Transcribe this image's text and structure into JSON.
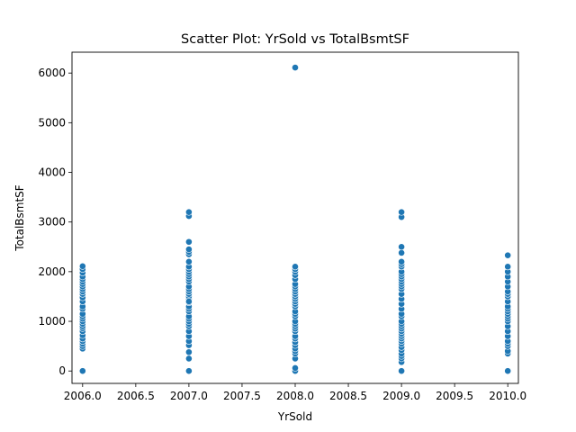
{
  "chart_data": {
    "type": "scatter",
    "title": "Scatter Plot: YrSold vs TotalBsmtSF",
    "xlabel": "YrSold",
    "ylabel": "TotalBsmtSF",
    "xlim": [
      2005.9,
      2010.1
    ],
    "ylim": [
      -250,
      6420
    ],
    "xticks": [
      "2006.0",
      "2006.5",
      "2007.0",
      "2007.5",
      "2008.0",
      "2008.5",
      "2009.0",
      "2009.5",
      "2010.0"
    ],
    "yticks": [
      "0",
      "1000",
      "2000",
      "3000",
      "4000",
      "5000",
      "6000"
    ],
    "grid": false,
    "marker_color": "#1f77b4",
    "series": [
      {
        "x": [
          2006,
          2006,
          2006,
          2006,
          2006,
          2006,
          2006,
          2006,
          2006,
          2006,
          2006,
          2006,
          2006,
          2006,
          2006,
          2006,
          2006,
          2006,
          2006,
          2006,
          2006,
          2006,
          2006,
          2006,
          2006,
          2006,
          2006,
          2006,
          2006,
          2006,
          2007,
          2007,
          2007,
          2007,
          2007,
          2007,
          2007,
          2007,
          2007,
          2007,
          2007,
          2007,
          2007,
          2007,
          2007,
          2007,
          2007,
          2007,
          2007,
          2007,
          2007,
          2007,
          2007,
          2007,
          2007,
          2007,
          2007,
          2007,
          2007,
          2007,
          2007,
          2007,
          2007,
          2007,
          2007,
          2007,
          2007,
          2008,
          2008,
          2008,
          2008,
          2008,
          2008,
          2008,
          2008,
          2008,
          2008,
          2008,
          2008,
          2008,
          2008,
          2008,
          2008,
          2008,
          2008,
          2008,
          2008,
          2008,
          2008,
          2008,
          2008,
          2008,
          2008,
          2008,
          2008,
          2008,
          2008,
          2008,
          2008,
          2008,
          2008,
          2009,
          2009,
          2009,
          2009,
          2009,
          2009,
          2009,
          2009,
          2009,
          2009,
          2009,
          2009,
          2009,
          2009,
          2009,
          2009,
          2009,
          2009,
          2009,
          2009,
          2009,
          2009,
          2009,
          2009,
          2009,
          2009,
          2009,
          2009,
          2009,
          2009,
          2009,
          2009,
          2009,
          2009,
          2009,
          2009,
          2009,
          2009,
          2010,
          2010,
          2010,
          2010,
          2010,
          2010,
          2010,
          2010,
          2010,
          2010,
          2010,
          2010,
          2010,
          2010,
          2010,
          2010,
          2010,
          2010,
          2010,
          2010,
          2010,
          2010,
          2010,
          2010,
          2010,
          2010
        ],
        "y": [
          0,
          450,
          500,
          550,
          600,
          650,
          720,
          800,
          860,
          900,
          950,
          1000,
          1050,
          1100,
          1150,
          1250,
          1300,
          1400,
          1480,
          1550,
          1600,
          1650,
          1700,
          1750,
          1800,
          1850,
          1900,
          1980,
          2050,
          2110,
          0,
          250,
          380,
          520,
          600,
          700,
          800,
          900,
          950,
          1000,
          1050,
          1100,
          1200,
          1250,
          1300,
          1380,
          1450,
          1500,
          1550,
          1600,
          1650,
          1700,
          1800,
          1850,
          1900,
          1950,
          2000,
          2050,
          2100,
          2200,
          2350,
          2400,
          2450,
          2600,
          3120,
          3200,
          1400,
          0,
          60,
          250,
          350,
          400,
          450,
          520,
          580,
          650,
          700,
          800,
          850,
          900,
          950,
          1000,
          1100,
          1150,
          1200,
          1300,
          1350,
          1400,
          1450,
          1500,
          1550,
          1600,
          1650,
          1700,
          1750,
          1850,
          1930,
          2000,
          2050,
          2100,
          6110,
          0,
          180,
          250,
          300,
          350,
          420,
          480,
          550,
          600,
          650,
          700,
          750,
          800,
          850,
          900,
          950,
          1000,
          1100,
          1150,
          1250,
          1350,
          1450,
          1550,
          1650,
          1700,
          1750,
          1800,
          1850,
          1900,
          1950,
          2000,
          2100,
          2150,
          2200,
          2380,
          2500,
          3100,
          3200,
          0,
          350,
          400,
          500,
          550,
          600,
          700,
          800,
          900,
          1000,
          1050,
          1100,
          1150,
          1200,
          1250,
          1300,
          1400,
          1500,
          1550,
          1600,
          1700,
          1800,
          1900,
          2000,
          2100,
          2330
        ]
      }
    ]
  }
}
